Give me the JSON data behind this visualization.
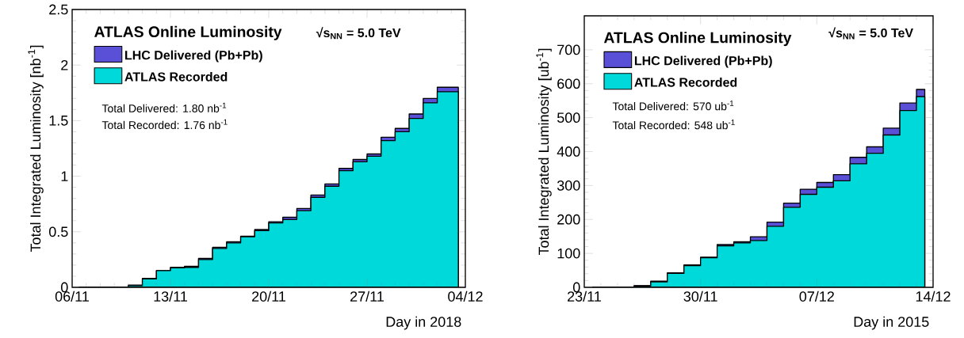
{
  "chart_data": [
    {
      "type": "area",
      "xlabel": "Day in 2018",
      "ylabel": "Total Integrated Luminosity [nb$^{-1}$]",
      "legend_title": "ATLAS Online Luminosity",
      "legend": "top left",
      "annotations": [
        "√s$_{NN}$ = 5.0 TeV",
        "Total Delivered: 1.80 nb$^{-1}$",
        "Total Recorded: 1.76 nb$^{-1}$"
      ],
      "x": [
        "2018-11-06T12:00",
        "2018-11-07T12:00",
        "2018-11-08T12:00",
        "2018-11-09T12:00",
        "2018-11-10T12:00",
        "2018-11-11T12:00",
        "2018-11-12T12:00",
        "2018-11-13T12:00",
        "2018-11-14T12:00",
        "2018-11-15T12:00",
        "2018-11-16T12:00",
        "2018-11-17T12:00",
        "2018-11-18T12:00",
        "2018-11-19T12:00",
        "2018-11-20T12:00",
        "2018-11-21T12:00",
        "2018-11-22T12:00",
        "2018-11-23T12:00",
        "2018-11-24T12:00",
        "2018-11-25T12:00",
        "2018-11-26T12:00",
        "2018-11-27T12:00",
        "2018-11-28T12:00",
        "2018-11-29T12:00",
        "2018-11-30T12:00",
        "2018-12-01T12:00",
        "2018-12-02T12:00",
        "2018-12-03T12:00"
      ],
      "series": [
        {
          "name": "LHC Delivered (Pb+Pb)",
          "color": "#5a50d8",
          "values": [
            0,
            0,
            0,
            0,
            0.02,
            0.08,
            0.15,
            0.18,
            0.19,
            0.26,
            0.36,
            0.41,
            0.46,
            0.52,
            0.59,
            0.63,
            0.71,
            0.83,
            0.93,
            1.07,
            1.15,
            1.2,
            1.35,
            1.43,
            1.56,
            1.7,
            1.8,
            1.8
          ]
        },
        {
          "name": "ATLAS Recorded",
          "color": "#00d9d9",
          "values": [
            0,
            0,
            0,
            0,
            0.015,
            0.075,
            0.15,
            0.175,
            0.18,
            0.25,
            0.35,
            0.4,
            0.455,
            0.51,
            0.58,
            0.61,
            0.69,
            0.81,
            0.91,
            1.05,
            1.13,
            1.18,
            1.32,
            1.4,
            1.52,
            1.66,
            1.76,
            1.76
          ]
        }
      ],
      "xlim": [
        "2018-11-06",
        "2018-12-04"
      ],
      "xticks": [
        {
          "value": "2018-11-06",
          "label": "06/11"
        },
        {
          "value": "2018-11-13",
          "label": "13/11"
        },
        {
          "value": "2018-11-20",
          "label": "20/11"
        },
        {
          "value": "2018-11-27",
          "label": "27/11"
        },
        {
          "value": "2018-12-04",
          "label": "04/12"
        }
      ],
      "ylim": [
        0,
        2.5
      ],
      "yticks": [
        0,
        0.5,
        1,
        1.5,
        2,
        2.5
      ]
    },
    {
      "type": "area",
      "xlabel": "Day in 2015",
      "ylabel": "Total Integrated Luminosity [ub$^{-1}$]",
      "legend_title": "ATLAS Online Luminosity",
      "legend": "top left",
      "annotations": [
        "√s$_{NN}$ = 5.0 TeV",
        "Total Delivered: 570 ub$^{-1}$",
        "Total Recorded: 548 ub$^{-1}$"
      ],
      "x": [
        "2015-11-23T12:00",
        "2015-11-24T12:00",
        "2015-11-25T12:00",
        "2015-11-26T12:00",
        "2015-11-27T12:00",
        "2015-11-28T12:00",
        "2015-11-29T12:00",
        "2015-11-30T12:00",
        "2015-12-01T12:00",
        "2015-12-02T12:00",
        "2015-12-03T12:00",
        "2015-12-04T12:00",
        "2015-12-05T12:00",
        "2015-12-06T12:00",
        "2015-12-07T12:00",
        "2015-12-08T12:00",
        "2015-12-09T12:00",
        "2015-12-10T12:00",
        "2015-12-11T12:00",
        "2015-12-12T12:00",
        "2015-12-13T12:00"
      ],
      "series": [
        {
          "name": "LHC Delivered (Pb+Pb)",
          "color": "#5a50d8",
          "values": [
            0,
            0,
            0,
            5,
            18,
            43,
            66,
            89,
            126,
            134,
            149,
            192,
            248,
            289,
            309,
            332,
            383,
            414,
            469,
            543,
            583
          ]
        },
        {
          "name": "ATLAS Recorded",
          "color": "#00d9d9",
          "values": [
            0,
            0,
            0,
            4,
            16,
            41,
            64,
            87,
            122,
            131,
            138,
            180,
            236,
            274,
            295,
            314,
            364,
            395,
            449,
            521,
            562
          ]
        }
      ],
      "xlim": [
        "2015-11-23",
        "2015-12-14"
      ],
      "xticks": [
        {
          "value": "2015-11-23",
          "label": "23/11"
        },
        {
          "value": "2015-11-30",
          "label": "30/11"
        },
        {
          "value": "2015-12-07",
          "label": "07/12"
        },
        {
          "value": "2015-12-14",
          "label": "14/12"
        }
      ],
      "ylim": [
        0,
        800
      ],
      "yticks": [
        0,
        100,
        200,
        300,
        400,
        500,
        600,
        700
      ]
    }
  ]
}
